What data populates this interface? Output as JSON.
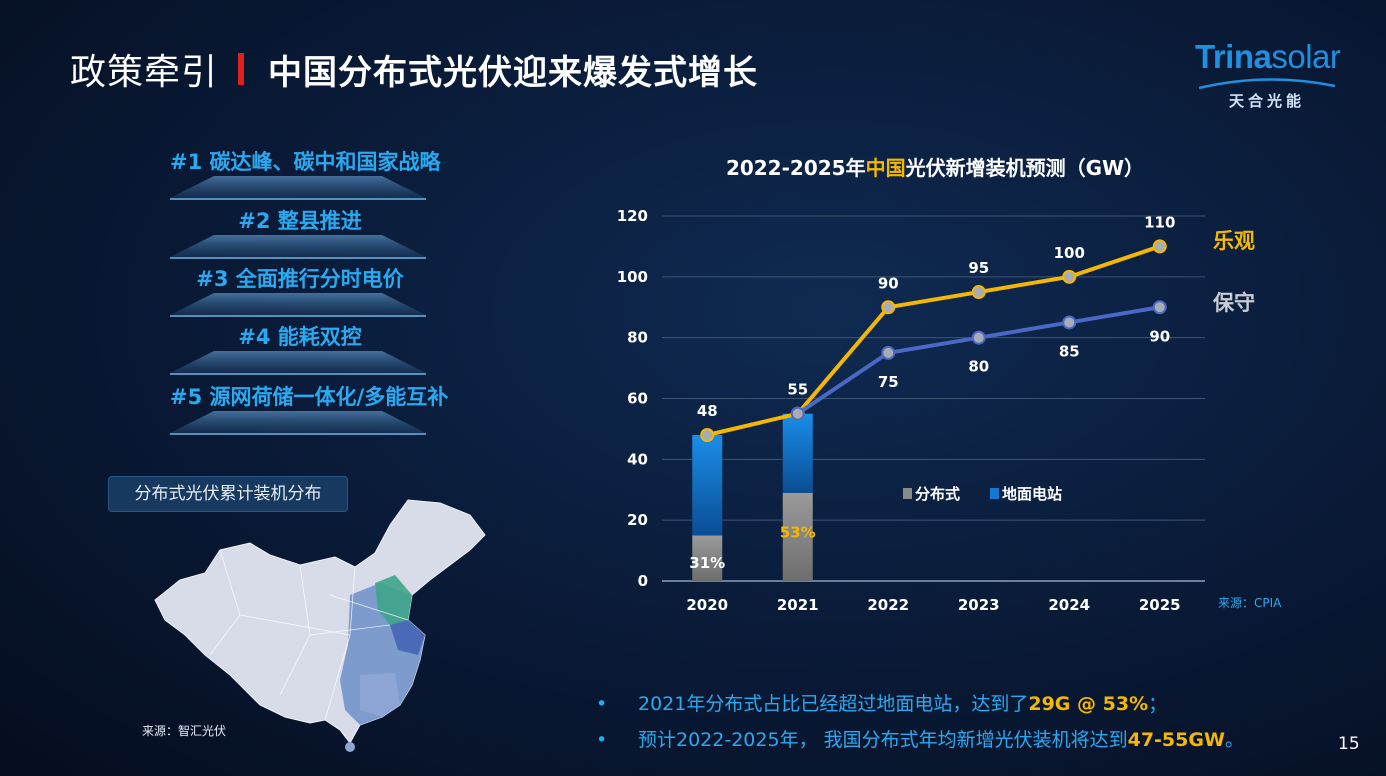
{
  "header": {
    "prefix": "政策牵引",
    "title": "中国分布式光伏迎来爆发式增长"
  },
  "logo": {
    "brand_a": "Trina",
    "brand_b": "solar",
    "sub": "天合光能"
  },
  "policies": [
    {
      "label": "#1 碳达峰、碳中和国家战略"
    },
    {
      "label": "#2 整县推进"
    },
    {
      "label": "#3 全面推行分时电价"
    },
    {
      "label": "#4 能耗双控"
    },
    {
      "label": "#5 源网荷储一体化/多能互补"
    }
  ],
  "map": {
    "label": "分布式光伏累计装机分布",
    "source": "来源：智汇光伏"
  },
  "chart_title": {
    "pre": "2022-2025年",
    "highlight": "中国",
    "post": "光伏新增装机预测（GW）"
  },
  "chart_data": {
    "type": "bar+line",
    "title": "2022-2025年中国光伏新增装机预测（GW）",
    "categories": [
      "2020",
      "2021",
      "2022",
      "2023",
      "2024",
      "2025"
    ],
    "ylim": [
      0,
      120
    ],
    "yticks": [
      0,
      20,
      40,
      60,
      80,
      100,
      120
    ],
    "stacked_bars": {
      "categories": [
        "2020",
        "2021"
      ],
      "series": [
        {
          "name": "分布式",
          "values": [
            15,
            29
          ],
          "color": "#8a8a8a"
        },
        {
          "name": "地面电站",
          "values": [
            33,
            26
          ],
          "color": "#1478d4"
        }
      ],
      "share_labels": [
        "31%",
        "53%"
      ]
    },
    "lines": [
      {
        "name": "乐观",
        "values": [
          48,
          55,
          90,
          95,
          100,
          110
        ],
        "color": "#f5b800"
      },
      {
        "name": "保守",
        "values": [
          null,
          55,
          75,
          80,
          85,
          90
        ],
        "color": "#4a68c4"
      }
    ],
    "point_labels": {
      "optimistic": [
        "48",
        "55",
        "90",
        "95",
        "100",
        "110"
      ],
      "conservative": [
        "75",
        "80",
        "85",
        "90"
      ]
    },
    "legend": [
      "分布式",
      "地面电站"
    ],
    "gridlines": true
  },
  "chart_source": "来源：CPIA",
  "bullets": [
    {
      "dot": "•",
      "text": "2021年分布式占比已经超过地面电站，达到了",
      "em": "29G @ 53%",
      "tail": "；"
    },
    {
      "dot": "•",
      "text": "预计2022-2025年， 我国分布式年均新增光伏装机将达到",
      "em": "47-55GW",
      "tail": "。"
    }
  ],
  "page_number": "15",
  "colors": {
    "accent_blue": "#2aa9f0",
    "accent_gold": "#f5b800",
    "accent_red": "#e0201a"
  }
}
